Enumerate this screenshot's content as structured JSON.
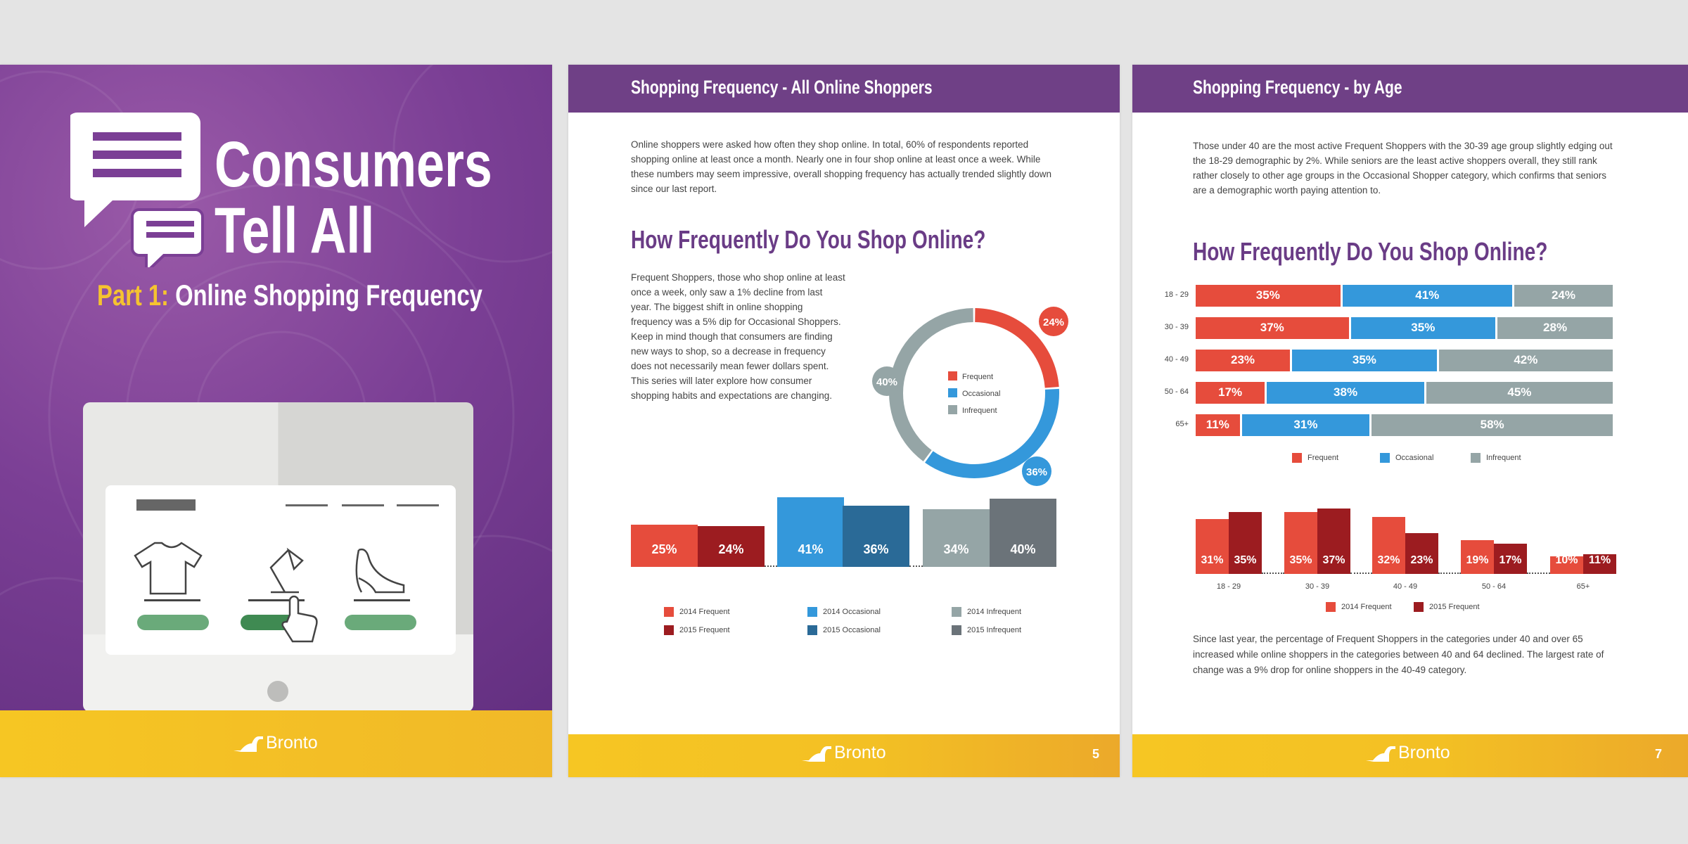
{
  "cover": {
    "title_line1": "Consumers",
    "title_line2": "Tell All",
    "part_label": "Part 1:",
    "subtitle": "Online Shopping Frequency",
    "logo_text": "Bronto"
  },
  "page5": {
    "header": "Shopping Frequency - All Online Shoppers",
    "intro": "Online shoppers were asked how often they shop online. In total, 60% of respondents reported shopping online at least once a month. Nearly one in four shop online at least once a week. While these numbers may seem impressive, overall shopping frequency has actually trended slightly down since our last report.",
    "heading": "How Frequently Do You Shop Online?",
    "side_text": "Frequent Shoppers, those who shop online at least once a week, only saw a 1% decline from last year. The biggest shift in online shopping frequency was a 5% dip for Occasional Shoppers. Keep in mind though that consumers are finding new ways to shop, so a decrease in frequency does not necessarily mean fewer dollars spent. This series will later explore how consumer shopping habits and expectations are changing.",
    "logo_text": "Bronto",
    "page_number": "5"
  },
  "page7": {
    "header": "Shopping Frequency - by Age",
    "intro": "Those under 40 are the most active Frequent Shoppers with the 30-39 age group slightly edging out the 18-29 demographic by 2%. While seniors are the least active shoppers overall, they still rank rather closely to other age groups in the Occasional Shopper category, which confirms that seniors are a demographic worth paying attention to.",
    "heading": "How Frequently Do You Shop Online?",
    "outro": "Since last year, the percentage of Frequent Shoppers in the categories under 40 and over 65 increased while online shoppers in the categories between 40 and 64 declined. The largest rate of change was a 9% drop for online shoppers in the 40-49 category.",
    "logo_text": "Bronto",
    "page_number": "7"
  },
  "colors": {
    "purple": "#6f4086",
    "frequent": "#e64c3c",
    "frequent_2015": "#9c1c20",
    "occasional": "#3498db",
    "occasional_2015": "#2a6a97",
    "infrequent": "#95a5a6",
    "infrequent_2015": "#6b7379",
    "yellow": "#f6c623"
  },
  "chart_data": [
    {
      "type": "pie",
      "title": "How Frequently Do You Shop Online?",
      "categories": [
        "Frequent",
        "Occasional",
        "Infrequent"
      ],
      "values": [
        24,
        36,
        40
      ],
      "labels": [
        "24%",
        "36%",
        "40%"
      ],
      "colors": [
        "#e64c3c",
        "#3498db",
        "#95a5a6"
      ],
      "legend": "center"
    },
    {
      "type": "bar",
      "categories": [
        "Frequent",
        "Occasional",
        "Infrequent"
      ],
      "series": [
        {
          "name": "2014 Frequent",
          "color": "#e64c3c"
        },
        {
          "name": "2015 Frequent",
          "color": "#9c1c20"
        },
        {
          "name": "2014 Occasional",
          "color": "#3498db"
        },
        {
          "name": "2015 Occasional",
          "color": "#2a6a97"
        },
        {
          "name": "2014 Infrequent",
          "color": "#95a5a6"
        },
        {
          "name": "2015 Infrequent",
          "color": "#6b7379"
        }
      ],
      "values": [
        25,
        24,
        41,
        36,
        34,
        40
      ],
      "labels": [
        "25%",
        "24%",
        "41%",
        "36%",
        "34%",
        "40%"
      ],
      "legend_order": [
        0,
        2,
        4,
        1,
        3,
        5
      ],
      "legend": "bottom"
    },
    {
      "type": "bar",
      "stacked": true,
      "orientation": "horizontal",
      "title": "How Frequently Do You Shop Online?",
      "categories": [
        "18 - 29",
        "30 - 39",
        "40 - 49",
        "50 - 64",
        "65+"
      ],
      "series": [
        {
          "name": "Frequent",
          "color": "#e64c3c",
          "values": [
            35,
            37,
            23,
            17,
            11
          ],
          "labels": [
            "35%",
            "37%",
            "23%",
            "17%",
            "11%"
          ]
        },
        {
          "name": "Occasional",
          "color": "#3498db",
          "values": [
            41,
            35,
            35,
            38,
            31
          ],
          "labels": [
            "41%",
            "35%",
            "35%",
            "38%",
            "31%"
          ]
        },
        {
          "name": "Infrequent",
          "color": "#95a5a6",
          "values": [
            24,
            28,
            42,
            45,
            58
          ],
          "labels": [
            "24%",
            "28%",
            "42%",
            "45%",
            "58%"
          ]
        }
      ],
      "legend": "bottom"
    },
    {
      "type": "bar",
      "categories": [
        "18 - 29",
        "30 - 39",
        "40 - 49",
        "50 - 64",
        "65+"
      ],
      "series": [
        {
          "name": "2014 Frequent",
          "color": "#e64c3c",
          "values": [
            31,
            35,
            32,
            19,
            10
          ],
          "labels": [
            "31%",
            "35%",
            "32%",
            "19%",
            "10%"
          ]
        },
        {
          "name": "2015 Frequent",
          "color": "#9c1c20",
          "values": [
            35,
            37,
            23,
            17,
            11
          ],
          "labels": [
            "35%",
            "37%",
            "23%",
            "17%",
            "11%"
          ]
        }
      ],
      "legend": "bottom"
    }
  ]
}
